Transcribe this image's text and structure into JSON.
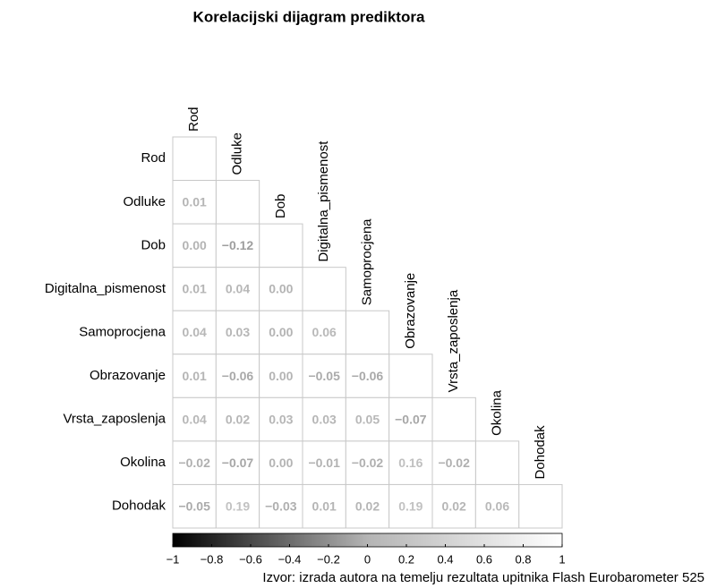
{
  "chart_data": {
    "type": "correlation",
    "title": "Korelacijski dijagram prediktora",
    "caption": "Izvor: izrada autora na temelju rezultata upitnika Flash Eurobarometer 525",
    "variables": [
      "Rod",
      "Odluke",
      "Dob",
      "Digitalna_pismenost",
      "Samoprocjena",
      "Obrazovanje",
      "Vrsta_zaposlenja",
      "Okolina",
      "Dohodak"
    ],
    "values": [
      [],
      [
        0.01
      ],
      [
        0.0,
        -0.12
      ],
      [
        0.01,
        0.04,
        0.0
      ],
      [
        0.04,
        0.03,
        0.0,
        0.06
      ],
      [
        0.01,
        -0.06,
        0.0,
        -0.05,
        -0.06
      ],
      [
        0.04,
        0.02,
        0.03,
        0.03,
        0.05,
        -0.07
      ],
      [
        -0.02,
        -0.07,
        0.0,
        -0.01,
        -0.02,
        0.16,
        -0.02
      ],
      [
        -0.05,
        0.19,
        -0.03,
        0.01,
        0.02,
        0.19,
        0.02,
        0.06
      ]
    ],
    "value_labels": [
      [],
      [
        "0.01"
      ],
      [
        "0.00",
        "−0.12"
      ],
      [
        "0.01",
        "0.04",
        "0.00"
      ],
      [
        "0.04",
        "0.03",
        "0.00",
        "0.06"
      ],
      [
        "0.01",
        "−0.06",
        "0.00",
        "−0.05",
        "−0.06"
      ],
      [
        "0.04",
        "0.02",
        "0.03",
        "0.03",
        "0.05",
        "−0.07"
      ],
      [
        "−0.02",
        "−0.07",
        "0.00",
        "−0.01",
        "−0.02",
        "0.16",
        "−0.02"
      ],
      [
        "−0.05",
        "0.19",
        "−0.03",
        "0.01",
        "0.02",
        "0.19",
        "0.02",
        "0.06"
      ]
    ],
    "colorscale": [
      {
        "value": -1,
        "color": "#000000"
      },
      {
        "value": 0,
        "color": "#b4b4b4"
      },
      {
        "value": 1,
        "color": "#ffffff"
      }
    ],
    "clim": [
      -1,
      1
    ],
    "cticks": [
      {
        "value": -1,
        "label": "−1"
      },
      {
        "value": -0.8,
        "label": "−0.8"
      },
      {
        "value": -0.6,
        "label": "−0.6"
      },
      {
        "value": -0.4,
        "label": "−0.4"
      },
      {
        "value": -0.2,
        "label": "−0.2"
      },
      0,
      0.2,
      0.4,
      0.6,
      0.8,
      1
    ]
  }
}
